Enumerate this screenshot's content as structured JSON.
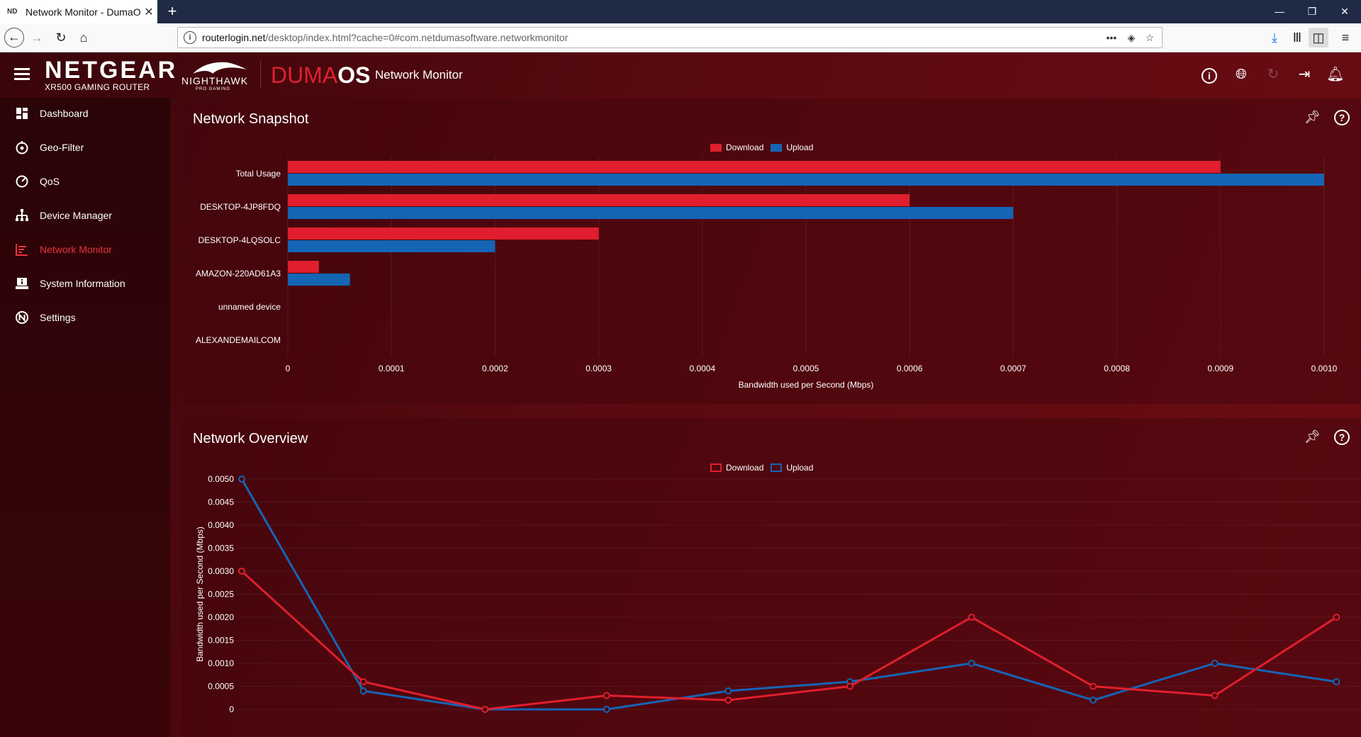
{
  "browser": {
    "tab_title": "Network Monitor - DumaOS",
    "tab_favicon": "ND",
    "url_host": "routerlogin.net",
    "url_path": "/desktop/index.html?cache=0#com.netdumasoftware.networkmonitor"
  },
  "header": {
    "brand": "NETGEAR",
    "model": "XR500 GAMING ROUTER",
    "nighthawk": "NIGHTHAWK",
    "pro_gaming": "PRO GAMING",
    "os_part1": "DUMA",
    "os_part2": "OS",
    "app_title": "Network Monitor"
  },
  "sidebar": {
    "items": [
      {
        "label": "Dashboard",
        "icon": "dashboard-icon"
      },
      {
        "label": "Geo-Filter",
        "icon": "geo-filter-icon"
      },
      {
        "label": "QoS",
        "icon": "qos-icon"
      },
      {
        "label": "Device Manager",
        "icon": "device-manager-icon"
      },
      {
        "label": "Network Monitor",
        "icon": "network-monitor-icon",
        "active": true
      },
      {
        "label": "System Information",
        "icon": "system-information-icon"
      },
      {
        "label": "Settings",
        "icon": "settings-icon"
      }
    ]
  },
  "colors": {
    "download": "#e01e2d",
    "upload": "#1565b5",
    "accent": "#e8333f"
  },
  "snapshot": {
    "title": "Network Snapshot",
    "legend_download": "Download",
    "legend_upload": "Upload",
    "chart_data": {
      "type": "bar",
      "orientation": "horizontal",
      "categories": [
        "Total Usage",
        "DESKTOP-4JP8FDQ",
        "DESKTOP-4LQSOLC",
        "AMAZON-220AD61A3",
        "unnamed device",
        "ALEXANDEMAILCOM"
      ],
      "series": [
        {
          "name": "Download",
          "values": [
            0.0009,
            0.0006,
            0.0003,
            3e-05,
            0,
            0
          ]
        },
        {
          "name": "Upload",
          "values": [
            0.001,
            0.0007,
            0.0002,
            6e-05,
            0,
            0
          ]
        }
      ],
      "xlabel": "Bandwidth used per Second (Mbps)",
      "xlim": [
        0,
        0.001
      ],
      "xticks": [
        "0",
        "0.0001",
        "0.0002",
        "0.0003",
        "0.0004",
        "0.0005",
        "0.0006",
        "0.0007",
        "0.0008",
        "0.0009",
        "0.0010"
      ],
      "grid": true,
      "legend": "top-center"
    }
  },
  "overview": {
    "title": "Network Overview",
    "legend_download": "Download",
    "legend_upload": "Upload",
    "chart_data": {
      "type": "line",
      "series": [
        {
          "name": "Download",
          "values": [
            0.003,
            0.0006,
            0.0,
            0.0003,
            0.0002,
            0.0005,
            0.002,
            0.0005,
            0.0003,
            0.002
          ]
        },
        {
          "name": "Upload",
          "values": [
            0.005,
            0.0004,
            0.0,
            0.0,
            0.0004,
            0.0006,
            0.001,
            0.0002,
            0.001,
            0.0006
          ]
        }
      ],
      "ylabel": "Bandwidth used per Second (Mbps)",
      "ylim": [
        0,
        0.005
      ],
      "yticks": [
        "0",
        "0.0005",
        "0.0010",
        "0.0015",
        "0.0020",
        "0.0025",
        "0.0030",
        "0.0035",
        "0.0040",
        "0.0045",
        "0.0050"
      ],
      "legend": "top-center"
    }
  }
}
